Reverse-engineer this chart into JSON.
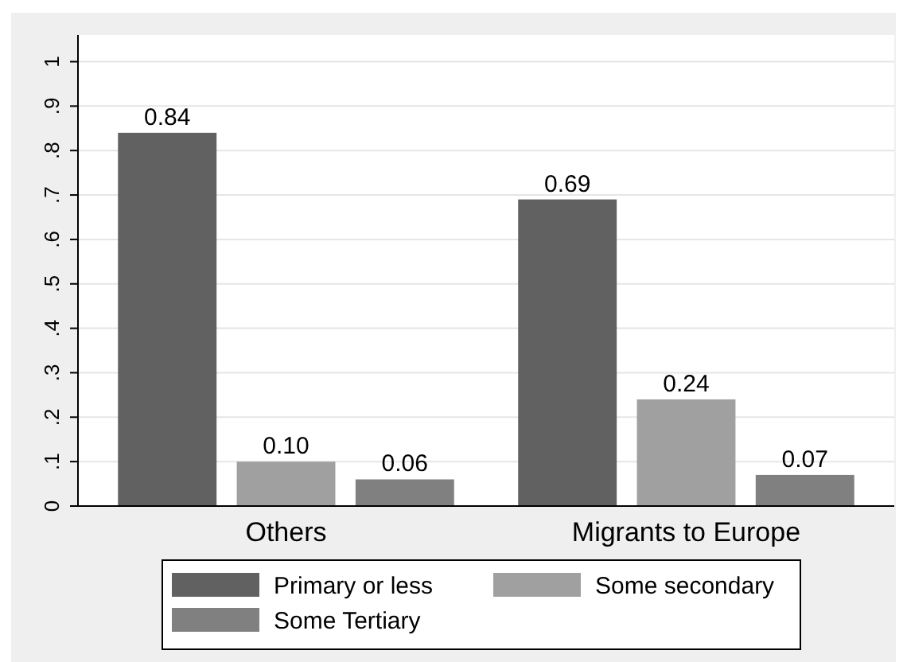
{
  "chart_data": {
    "type": "bar",
    "categories": [
      "Others",
      "Migrants to Europe"
    ],
    "series": [
      {
        "name": "Primary or less",
        "color": "#616161",
        "values": [
          0.84,
          0.69
        ],
        "value_labels": [
          "0.84",
          "0.69"
        ]
      },
      {
        "name": "Some secondary",
        "color": "#a0a0a0",
        "values": [
          0.1,
          0.24
        ],
        "value_labels": [
          "0.10",
          "0.24"
        ]
      },
      {
        "name": "Some Tertiary",
        "color": "#808080",
        "values": [
          0.06,
          0.07
        ],
        "value_labels": [
          "0.06",
          "0.07"
        ]
      }
    ],
    "ylim": [
      0,
      1.06
    ],
    "yticks": [
      0,
      {
        "value": 0.1,
        "label": ".1"
      },
      {
        "value": 0.2,
        "label": ".2"
      },
      {
        "value": 0.3,
        "label": ".3"
      },
      {
        "value": 0.4,
        "label": ".4"
      },
      {
        "value": 0.5,
        "label": ".5"
      },
      {
        "value": 0.6,
        "label": ".6"
      },
      {
        "value": 0.7,
        "label": ".7"
      },
      {
        "value": 0.8,
        "label": ".8"
      },
      {
        "value": 0.9,
        "label": ".9"
      },
      1
    ],
    "grid": "y",
    "legend": "bottom"
  }
}
